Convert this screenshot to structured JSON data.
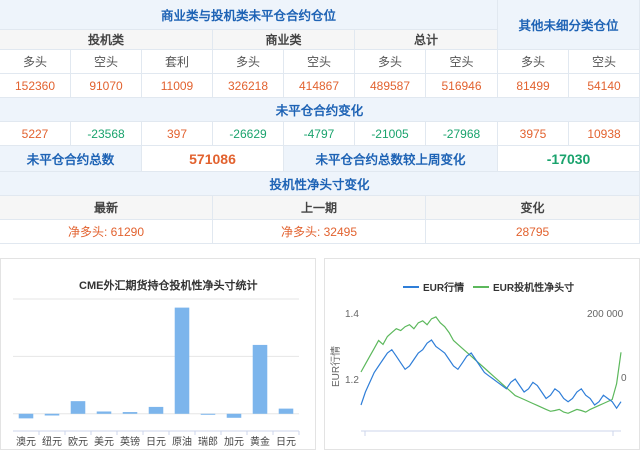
{
  "table": {
    "header": {
      "main": "商业类与投机类未平仓合约仓位",
      "other": "其他未细分类仓位"
    },
    "groups": [
      "投机类",
      "商业类",
      "总计"
    ],
    "col_labels": [
      "多头",
      "空头",
      "套利",
      "多头",
      "空头",
      "多头",
      "空头",
      "多头",
      "空头"
    ],
    "values": [
      "152360",
      "91070",
      "11009",
      "326218",
      "414867",
      "489587",
      "516946",
      "81499",
      "54140"
    ],
    "change_header": "未平仓合约变化",
    "changes": [
      "5227",
      "-23568",
      "397",
      "-26629",
      "-4797",
      "-21005",
      "-27968",
      "3975",
      "10938"
    ],
    "total_label": "未平仓合约总数",
    "total_value": "571086",
    "weekly_label": "未平仓合约总数较上周变化",
    "weekly_value": "-17030",
    "net_header": "投机性净头寸变化",
    "net_cols": [
      "最新",
      "上一期",
      "变化"
    ],
    "net_latest": "净多头: 61290",
    "net_prev": "净多头: 32495",
    "net_change": "28795"
  },
  "colors": {
    "header_blue": "#1e63b5",
    "positive": "#e2622f",
    "negative": "#1aa36d",
    "bar_blue": "#7cb5ec",
    "line_blue": "#2f7ed8",
    "line_green": "#5cb85c"
  },
  "chart_data": [
    {
      "type": "bar",
      "title": "CME外汇期货持仓投机性净头寸统计",
      "categories": [
        "澳元",
        "纽元",
        "欧元",
        "美元",
        "英镑",
        "日元",
        "原油",
        "瑞郎",
        "加元",
        "黄金",
        "日元"
      ],
      "values": [
        -8000,
        -3000,
        22000,
        4000,
        3000,
        12000,
        185000,
        0,
        -7000,
        120000,
        9000
      ],
      "ylim": [
        -30000,
        200000
      ],
      "grid": true
    },
    {
      "type": "line",
      "legend": [
        "EUR行情",
        "EUR投机性净头寸"
      ],
      "legend_position": "top",
      "y_left_ticks": [
        "1.4",
        "1.2"
      ],
      "y_left_label": "EUR行情",
      "y_right_ticks": [
        "200 000",
        "0"
      ],
      "series": [
        {
          "name": "EUR行情",
          "values": [
            1.08,
            1.12,
            1.15,
            1.18,
            1.2,
            1.22,
            1.24,
            1.25,
            1.23,
            1.21,
            1.19,
            1.2,
            1.22,
            1.24,
            1.25,
            1.27,
            1.28,
            1.26,
            1.25,
            1.24,
            1.22,
            1.2,
            1.19,
            1.21,
            1.23,
            1.24,
            1.22,
            1.2,
            1.18,
            1.17,
            1.16,
            1.15,
            1.14,
            1.13,
            1.15,
            1.16,
            1.14,
            1.12,
            1.13,
            1.15,
            1.14,
            1.12,
            1.1,
            1.11,
            1.13,
            1.12,
            1.1,
            1.09,
            1.1,
            1.12,
            1.13,
            1.11,
            1.1,
            1.08,
            1.09,
            1.11,
            1.1,
            1.09,
            1.07,
            1.09
          ]
        },
        {
          "name": "EUR投机性净头寸",
          "values": [
            90000,
            110000,
            130000,
            150000,
            170000,
            160000,
            180000,
            190000,
            200000,
            195000,
            205000,
            210000,
            200000,
            215000,
            220000,
            210000,
            225000,
            230000,
            215000,
            205000,
            190000,
            170000,
            160000,
            150000,
            140000,
            130000,
            120000,
            110000,
            100000,
            90000,
            80000,
            70000,
            60000,
            50000,
            40000,
            30000,
            25000,
            20000,
            15000,
            10000,
            5000,
            0,
            -5000,
            -10000,
            -8000,
            -5000,
            -12000,
            -15000,
            -10000,
            -5000,
            -8000,
            -12000,
            -5000,
            0,
            5000,
            10000,
            15000,
            20000,
            60000,
            140000
          ]
        }
      ]
    }
  ]
}
